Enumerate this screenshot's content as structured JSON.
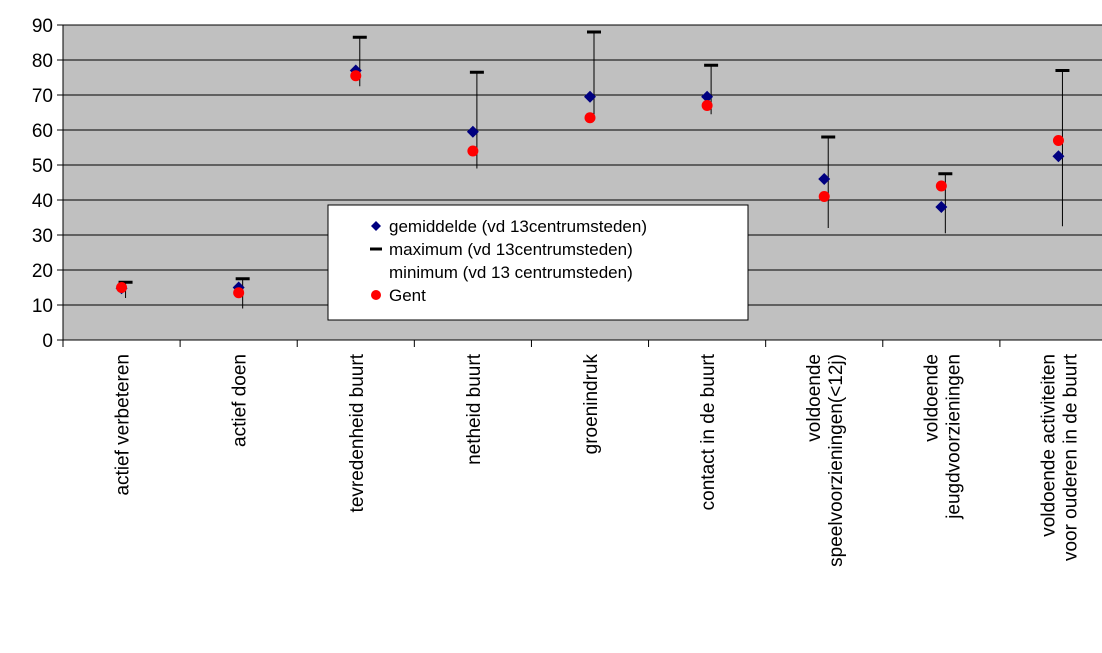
{
  "chart_data": {
    "type": "scatter",
    "title": "",
    "xlabel": "",
    "ylabel": "",
    "ylim": [
      0,
      90
    ],
    "yticks": [
      0,
      10,
      20,
      30,
      40,
      50,
      60,
      70,
      80,
      90
    ],
    "grid": true,
    "plot_background": "#C0C0C0",
    "legend_position": "center",
    "categories": [
      [
        "actief verbeteren"
      ],
      [
        "actief doen"
      ],
      [
        "tevredenheid buurt"
      ],
      [
        "netheid buurt"
      ],
      [
        "groenindruk"
      ],
      [
        "contact in de buurt"
      ],
      [
        "voldoende",
        "speelvoorzieningen(<12j)"
      ],
      [
        "voldoende",
        "jeugdvoorzieningen"
      ],
      [
        "voldoende activiteiten",
        "voor ouderen in de buurt"
      ]
    ],
    "series": [
      {
        "name": "gemiddelde (vd 13centrumsteden)",
        "marker": "diamond",
        "color": "#000080",
        "values": [
          14.8,
          15.0,
          77.0,
          59.5,
          69.5,
          69.5,
          46.0,
          38.0,
          52.5
        ]
      },
      {
        "name": "maximum (vd 13centrumsteden)",
        "marker": "dash",
        "color": "#000000",
        "values": [
          16.5,
          17.5,
          86.5,
          76.5,
          88.0,
          78.5,
          58.0,
          47.5,
          77.0
        ]
      },
      {
        "name": "minimum (vd 13 centrumsteden)",
        "marker": "none",
        "color": "#000000",
        "values": [
          12.0,
          9.0,
          72.5,
          49.0,
          63.5,
          64.5,
          32.0,
          30.5,
          32.5
        ]
      },
      {
        "name": "Gent",
        "marker": "circle",
        "color": "#FF0000",
        "values": [
          15.0,
          13.5,
          75.5,
          54.0,
          63.5,
          67.0,
          41.0,
          44.0,
          57.0
        ]
      }
    ]
  }
}
